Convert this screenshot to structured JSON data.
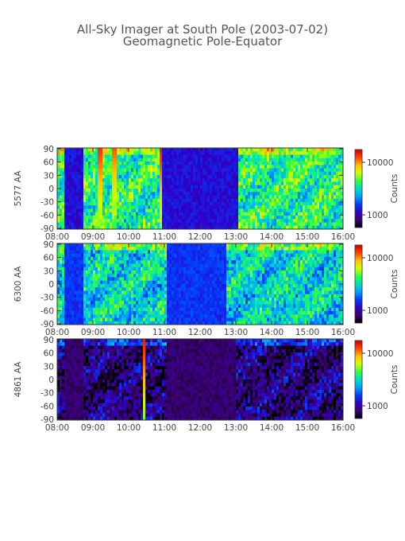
{
  "chart_data": {
    "type": "heatmap",
    "title": "All-Sky Imager at South Pole (2003-07-02)",
    "subtitle": "Geomagnetic Pole-Equator",
    "xticks": [
      "08:00",
      "09:00",
      "10:00",
      "11:00",
      "12:00",
      "13:00",
      "14:00",
      "15:00",
      "16:00"
    ],
    "x_range_hours": [
      8,
      16
    ],
    "colorbar_label": "Counts",
    "colorbar_scale": "log",
    "colorbar_ticks": [
      "10000",
      "1000"
    ],
    "colorscale": [
      "#000000",
      "#3b006e",
      "#2f00c8",
      "#0040ff",
      "#00a0ff",
      "#00e0c0",
      "#30ff40",
      "#d0ff00",
      "#ffc000",
      "#ff4000",
      "#d00000"
    ],
    "panels": [
      {
        "ylabel": "5577 AA",
        "yticks": [
          "90",
          "60",
          "30",
          "0",
          "-30",
          "-60",
          "-90"
        ],
        "ylim": [
          -90,
          90
        ],
        "baseline_level": 0.55,
        "dark_intervals": [
          [
            8.18,
            8.75
          ],
          [
            10.88,
            13.05
          ]
        ],
        "dark_level": 0.18,
        "bright_streaks": [
          [
            9.2,
            0.92
          ],
          [
            9.6,
            0.88
          ],
          [
            10.9,
            0.95
          ]
        ]
      },
      {
        "ylabel": "6300 AA",
        "yticks": [
          "90",
          "60",
          "30",
          "0",
          "-30",
          "-60",
          "-90"
        ],
        "ylim": [
          -90,
          90
        ],
        "baseline_level": 0.48,
        "dark_intervals": [
          [
            8.18,
            8.75
          ],
          [
            11.05,
            12.7
          ]
        ],
        "dark_level": 0.24,
        "bright_streaks": []
      },
      {
        "ylabel": "4861 AA",
        "yticks": [
          "90",
          "60",
          "30",
          "0",
          "-30",
          "-60",
          "-90"
        ],
        "ylim": [
          -90,
          90
        ],
        "baseline_level": 0.12,
        "dark_intervals": [
          [
            8.18,
            8.75
          ],
          [
            11.05,
            13.0
          ]
        ],
        "dark_level": 0.06,
        "bright_streaks": [
          [
            10.42,
            0.95
          ]
        ]
      }
    ]
  }
}
